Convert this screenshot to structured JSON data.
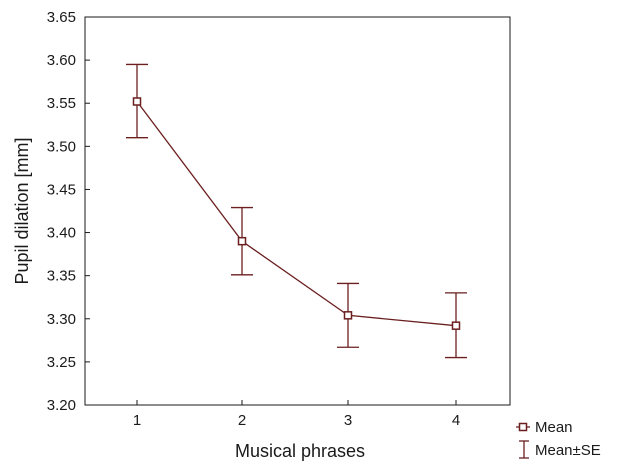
{
  "chart_data": {
    "type": "line",
    "xlabel": "Musical phrases",
    "ylabel": "Pupil dilation [mm]",
    "ylim": [
      3.2,
      3.65
    ],
    "yticks": [
      "3.20",
      "3.25",
      "3.30",
      "3.35",
      "3.40",
      "3.45",
      "3.50",
      "3.55",
      "3.60",
      "3.65"
    ],
    "categories": [
      "1",
      "2",
      "3",
      "4"
    ],
    "series": [
      {
        "name": "Mean",
        "values": [
          3.552,
          3.39,
          3.304,
          3.292
        ],
        "lower": [
          3.51,
          3.351,
          3.267,
          3.255
        ],
        "upper": [
          3.595,
          3.429,
          3.341,
          3.33
        ]
      }
    ],
    "error_bar_label": "Mean±SE",
    "legend_position": "bottom-right",
    "grid": false,
    "color": "#6b1f1f"
  }
}
